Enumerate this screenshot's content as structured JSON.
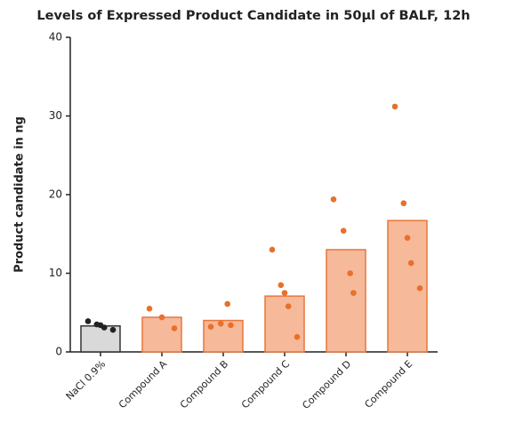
{
  "chart_data": {
    "type": "bar_dot",
    "title": "Levels of Expressed Product Candidate in 50µl of BALF, 12h",
    "y_label": "Product candidate in ng",
    "categories": [
      "NaCl 0.9%",
      "Compound A",
      "Compound B",
      "Compound C",
      "Compound D",
      "Compound E"
    ],
    "values": [
      3.3,
      4.4,
      4.0,
      7.1,
      13.0,
      16.7
    ],
    "points": [
      [
        3.9,
        3.5,
        3.4,
        3.1,
        2.8
      ],
      [
        5.5,
        4.4,
        3.0
      ],
      [
        3.2,
        3.6,
        6.1,
        3.4
      ],
      [
        13.0,
        8.5,
        7.5,
        5.8,
        1.9
      ],
      [
        19.4,
        15.4,
        10.0,
        7.5
      ],
      [
        31.2,
        18.9,
        14.5,
        11.3,
        8.1
      ]
    ],
    "bar_colors": [
      "#d9d9d9",
      "#f6b99a",
      "#f6b99a",
      "#f6b99a",
      "#f6b99a",
      "#f6b99a"
    ],
    "edge_colors": [
      "#333333",
      "#e8763a",
      "#e8763a",
      "#e8763a",
      "#e8763a",
      "#e8763a"
    ],
    "point_colors": [
      "#222222",
      "#e8702a",
      "#e8702a",
      "#e8702a",
      "#e8702a",
      "#e8702a"
    ],
    "ylim": [
      0,
      40
    ],
    "yticks": [
      0,
      10,
      20,
      30,
      40
    ]
  }
}
